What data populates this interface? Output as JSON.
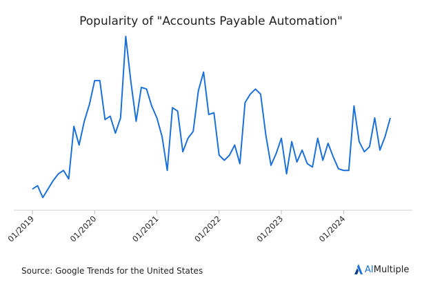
{
  "chart_data": {
    "type": "line",
    "title": "Popularity of \"Accounts Payable Automation\"",
    "x_tick_labels": [
      "01/2019",
      "01/2020",
      "01/2021",
      "01/2022",
      "01/2023",
      "01/2024"
    ],
    "x_start": "2019-01",
    "series": [
      {
        "values": [
          8,
          10,
          3,
          8,
          13,
          17,
          19,
          14,
          45,
          34,
          48,
          58,
          72,
          72,
          49,
          51,
          41,
          50,
          98,
          71,
          48,
          68,
          67,
          57,
          50,
          39,
          19,
          56,
          54,
          30,
          38,
          42,
          66,
          77,
          52,
          53,
          28,
          25,
          28,
          34,
          23,
          59,
          64,
          67,
          64,
          40,
          22,
          29,
          38,
          17,
          36,
          24,
          31,
          23,
          21,
          38,
          25,
          35,
          27,
          20,
          19,
          19,
          57,
          36,
          30,
          33,
          50,
          31,
          39,
          50
        ]
      }
    ],
    "ylim": [
      0,
      100
    ],
    "grid": false,
    "line_color": "#1a6fd8"
  },
  "footer": {
    "source": "Source: Google Trends for the United States",
    "brand_prefix": "AI",
    "brand_suffix": "Multiple",
    "brand_color": "#1a6fd8"
  }
}
